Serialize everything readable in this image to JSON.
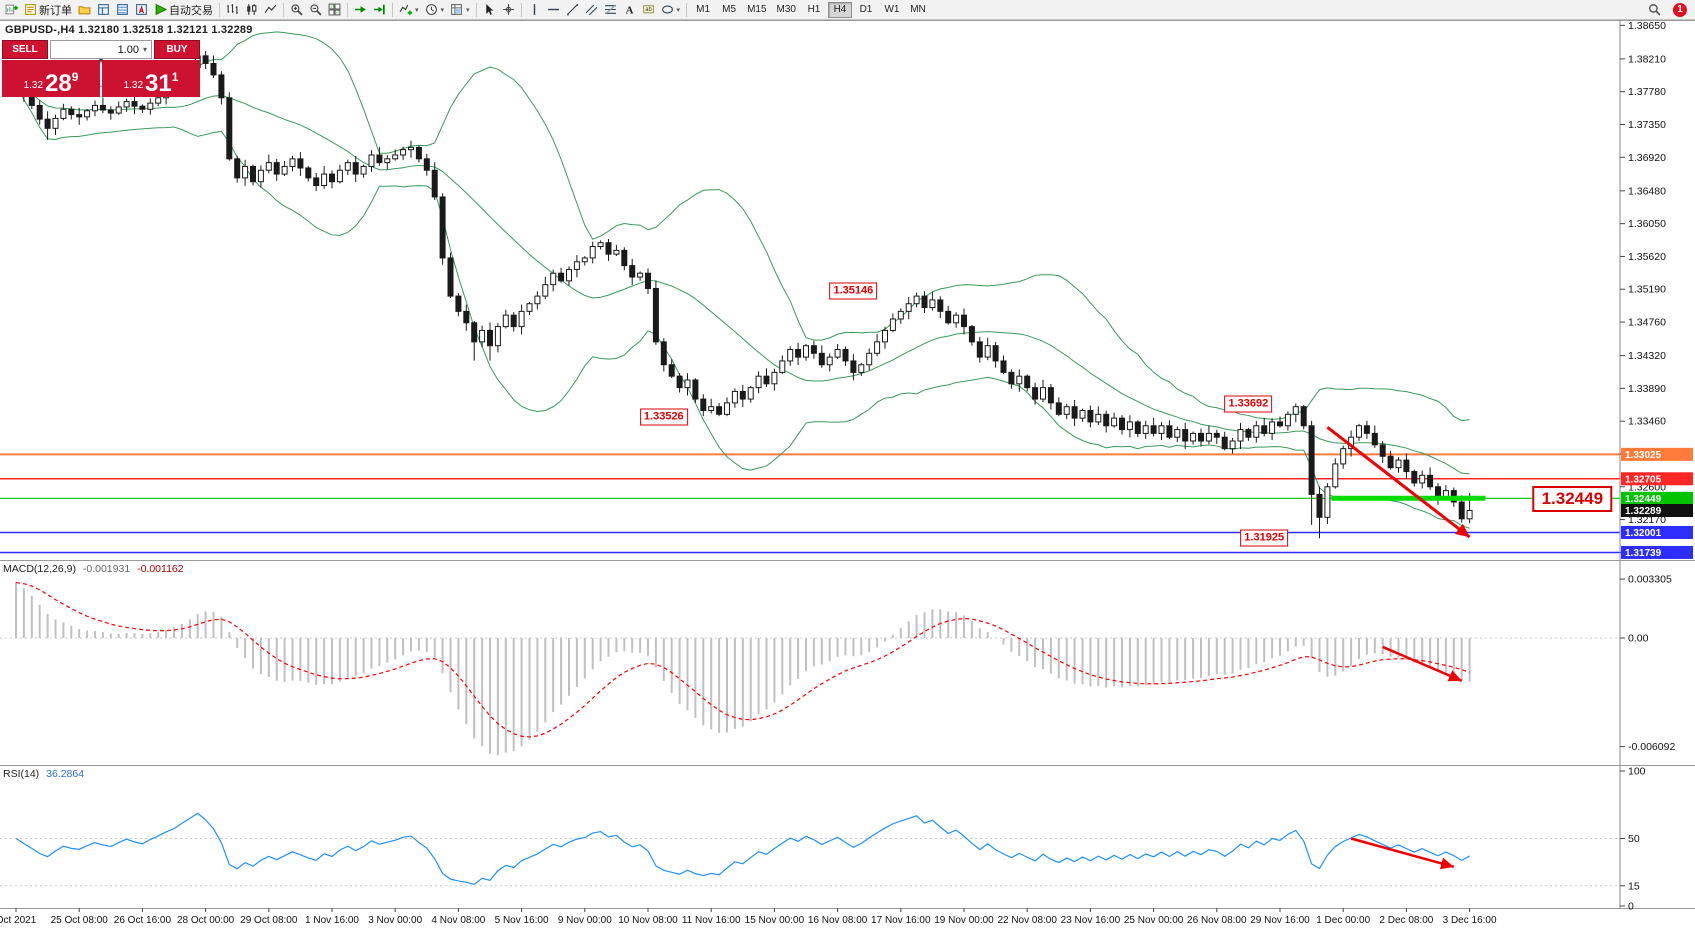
{
  "toolbar": {
    "new_order_label": "新订单",
    "autotrade_label": "自动交易",
    "timeframes": [
      "M1",
      "M5",
      "M15",
      "M30",
      "H1",
      "H4",
      "D1",
      "W1",
      "MN"
    ],
    "active_timeframe": "H4",
    "notification_badge": "1",
    "items": [
      {
        "name": "new-chart",
        "kind": "chartplus"
      },
      {
        "name": "new-order",
        "kind": "neworder",
        "label": "新订单"
      },
      {
        "name": "charts-folder",
        "kind": "folder"
      },
      {
        "name": "market-watch",
        "kind": "watch"
      },
      {
        "name": "data-window",
        "kind": "datawin"
      },
      {
        "name": "navigator",
        "kind": "navigator"
      },
      {
        "name": "auto-trading",
        "kind": "play",
        "label": "自动交易"
      },
      {
        "sep": true
      },
      {
        "name": "bar-chart-mode",
        "kind": "bars"
      },
      {
        "name": "candle-chart-mode",
        "kind": "candles"
      },
      {
        "name": "line-chart-mode",
        "kind": "linechart"
      },
      {
        "sep": true
      },
      {
        "name": "zoom-in",
        "kind": "zoomin"
      },
      {
        "name": "zoom-out",
        "kind": "zoomout"
      },
      {
        "name": "tile-windows",
        "kind": "tile"
      },
      {
        "sep": true
      },
      {
        "name": "auto-scroll",
        "kind": "autoscroll"
      },
      {
        "name": "chart-shift",
        "kind": "shift"
      },
      {
        "sep": true
      },
      {
        "name": "indicators",
        "kind": "indplus",
        "dropdown": true
      },
      {
        "name": "periods",
        "kind": "clock",
        "dropdown": true
      },
      {
        "name": "templates",
        "kind": "template",
        "dropdown": true
      },
      {
        "sep": true
      },
      {
        "name": "cursor",
        "kind": "cursor"
      },
      {
        "name": "crosshair",
        "kind": "crosshair"
      },
      {
        "sep": true
      },
      {
        "name": "vertical-line",
        "kind": "vline"
      },
      {
        "name": "horizontal-line",
        "kind": "hline"
      },
      {
        "name": "trend-line",
        "kind": "tline"
      },
      {
        "name": "equidistant-channel",
        "kind": "channel"
      },
      {
        "name": "fibonacci",
        "kind": "fibo"
      },
      {
        "name": "text",
        "kind": "textA"
      },
      {
        "name": "text-label",
        "kind": "labelT"
      },
      {
        "name": "shapes",
        "kind": "ellipse",
        "dropdown": true
      },
      {
        "sep": true
      }
    ]
  },
  "chart_header": {
    "title": "GBPUSD-,H4 1.32180 1.32518 1.32121 1.32289"
  },
  "trade_panel": {
    "sell_label": "SELL",
    "buy_label": "BUY",
    "volume": "1.00",
    "sell_price_prefix": "1.32",
    "sell_price_big": "28",
    "sell_price_sup": "9",
    "buy_price_prefix": "1.32",
    "buy_price_big": "31",
    "buy_price_sup": "1"
  },
  "indicators": {
    "macd_label": "MACD(12,26,9)",
    "macd_value": "-0.001931",
    "macd_signal_value": "-0.001162",
    "rsi_label": "RSI(14)",
    "rsi_value": "36.2864"
  },
  "chart_data": {
    "type": "candlestick",
    "symbol": "GBPUSD-",
    "period": "H4",
    "ohlc_display": {
      "open": "1.32180",
      "high": "1.32518",
      "low": "1.32121",
      "close": "1.32289"
    },
    "price_range": [
      1.3164,
      1.3872
    ],
    "price_axis_ticks": [
      "1.38650",
      "1.38210",
      "1.37780",
      "1.37350",
      "1.36920",
      "1.36480",
      "1.36050",
      "1.35620",
      "1.35190",
      "1.34760",
      "1.34320",
      "1.33890",
      "1.33460",
      "1.33030",
      "1.32600",
      "1.32170",
      "1.31740"
    ],
    "time_labels": [
      "Oct 2021",
      "25 Oct 08:00",
      "26 Oct 16:00",
      "28 Oct 00:00",
      "29 Oct 08:00",
      "1 Nov 16:00",
      "3 Nov 00:00",
      "4 Nov 08:00",
      "5 Nov 16:00",
      "9 Nov 00:00",
      "10 Nov 08:00",
      "11 Nov 16:00",
      "15 Nov 00:00",
      "16 Nov 08:00",
      "17 Nov 16:00",
      "19 Nov 00:00",
      "22 Nov 08:00",
      "23 Nov 16:00",
      "25 Nov 00:00",
      "26 Nov 08:00",
      "29 Nov 16:00",
      "1 Dec 00:00",
      "2 Dec 08:00",
      "3 Dec 16:00"
    ],
    "bars_per_label": 8,
    "first_open": 1.3778,
    "closes": [
      1.379,
      1.3775,
      1.376,
      1.3742,
      1.373,
      1.3743,
      1.3755,
      1.3748,
      1.3745,
      1.3753,
      1.376,
      1.3754,
      1.375,
      1.3758,
      1.3765,
      1.3759,
      1.3755,
      1.3763,
      1.377,
      1.3778,
      1.3785,
      1.3797,
      1.381,
      1.3825,
      1.3815,
      1.38,
      1.377,
      1.369,
      1.3665,
      1.368,
      1.366,
      1.3675,
      1.3685,
      1.367,
      1.368,
      1.369,
      1.3678,
      1.3665,
      1.3655,
      1.367,
      1.366,
      1.3675,
      1.3685,
      1.367,
      1.368,
      1.3695,
      1.3685,
      1.369,
      1.3695,
      1.3702,
      1.3705,
      1.369,
      1.3675,
      1.364,
      1.356,
      1.351,
      1.349,
      1.3475,
      1.345,
      1.3465,
      1.3445,
      1.347,
      1.3485,
      1.347,
      1.349,
      1.35,
      1.351,
      1.3525,
      1.354,
      1.353,
      1.3545,
      1.3555,
      1.356,
      1.3575,
      1.358,
      1.3565,
      1.357,
      1.355,
      1.3535,
      1.354,
      1.352,
      1.345,
      1.342,
      1.3405,
      1.339,
      1.34,
      1.3375,
      1.336,
      1.3365,
      1.3355,
      1.337,
      1.3385,
      1.3375,
      1.339,
      1.3405,
      1.3395,
      1.341,
      1.3425,
      1.344,
      1.343,
      1.3445,
      1.3435,
      1.342,
      1.343,
      1.344,
      1.3425,
      1.341,
      1.342,
      1.3435,
      1.345,
      1.3465,
      1.348,
      1.349,
      1.35,
      1.351,
      1.3495,
      1.3505,
      1.349,
      1.3475,
      1.3485,
      1.347,
      1.345,
      1.343,
      1.3445,
      1.3425,
      1.341,
      1.3395,
      1.3405,
      1.339,
      1.3375,
      1.339,
      1.337,
      1.3355,
      1.3365,
      1.335,
      1.336,
      1.3345,
      1.3355,
      1.334,
      1.335,
      1.3335,
      1.3345,
      1.333,
      1.334,
      1.333,
      1.334,
      1.3325,
      1.3335,
      1.332,
      1.333,
      1.332,
      1.333,
      1.3325,
      1.331,
      1.332,
      1.3335,
      1.3325,
      1.334,
      1.333,
      1.3345,
      1.334,
      1.3355,
      1.3365,
      1.334,
      1.325,
      1.322,
      1.326,
      1.329,
      1.331,
      1.3325,
      1.334,
      1.333,
      1.3315,
      1.33,
      1.3285,
      1.3295,
      1.328,
      1.3265,
      1.3275,
      1.326,
      1.3245,
      1.3255,
      1.324,
      1.3218,
      1.32289
    ],
    "wick_pattern": [
      0.0005,
      0.0011,
      0.0003,
      0.0008,
      0.0013,
      0.0006,
      0.0009
    ],
    "wick_overrides": {
      "4": {
        "low": 1.3715
      },
      "23": {
        "high": 1.383
      },
      "58": {
        "low": 1.34254
      },
      "60": {
        "low": 1.34254
      },
      "74": {
        "high": 1.3583
      },
      "89": {
        "low": 1.33526
      },
      "114": {
        "high": 1.35146
      },
      "162": {
        "high": 1.33692
      },
      "164": {
        "low": 1.321
      },
      "165": {
        "low": 1.31925
      },
      "183": {
        "low": 1.3213
      },
      "184": {
        "open": 1.3218,
        "high": 1.32518,
        "low": 1.32121,
        "close": 1.32289
      }
    },
    "bollinger": {
      "period": 20,
      "deviation": 2,
      "color": "#3a9a5c"
    },
    "horizontal_lines": [
      {
        "price": 1.33025,
        "label": "1.33025",
        "color": "#ff7b3a",
        "width": 2
      },
      {
        "price": 1.32705,
        "label": "1.32705",
        "color": "#ff2626",
        "width": 1.5
      },
      {
        "price": 1.32449,
        "label": "1.32449",
        "color": "#00c400",
        "width": 1.2
      },
      {
        "price": 1.32001,
        "label": "1.32001",
        "color": "#2d2dff",
        "width": 1.5
      },
      {
        "price": 1.31739,
        "label": "1.31739",
        "color": "#2d2dff",
        "width": 1.5
      }
    ],
    "current_price_tag": {
      "price": 1.32289,
      "label": "1.32289",
      "color": "#111111"
    },
    "support_segment": {
      "price": 1.32449,
      "from_bar": 166.5,
      "to_bar": 186,
      "color": "#00dd00",
      "width": 5
    },
    "annotations": [
      {
        "text": "1.35146",
        "bar": 106,
        "price": 1.3517
      },
      {
        "text": "1.33526",
        "bar": 82,
        "price": 1.3352
      },
      {
        "text": "1.33692",
        "bar": 156,
        "price": 1.3369
      },
      {
        "text": "1.31925",
        "bar": 158,
        "price": 1.3193
      },
      {
        "text": "1.32449",
        "bar": 197,
        "price": 1.3244,
        "large": true
      }
    ],
    "trend_arrows": {
      "main": {
        "from": {
          "bar": 166,
          "price": 1.3338
        },
        "to": {
          "bar": 184,
          "price": 1.3194
        }
      },
      "macd": {
        "from": {
          "bar": 173,
          "value": -0.0005
        },
        "to": {
          "bar": 183,
          "value": -0.0024
        }
      },
      "rsi": {
        "from": {
          "bar": 169,
          "value": 50
        },
        "to": {
          "bar": 182,
          "value": 29
        }
      }
    },
    "macd": {
      "params": [
        12,
        26,
        9
      ],
      "axis_labels": [
        "0.003305",
        "0.00",
        "-0.006092"
      ],
      "axis_values": [
        0.003305,
        0,
        -0.006092
      ],
      "histogram_color": "#c0c0c0",
      "signal_color": "#ff0000",
      "display_main": -0.001931,
      "display_signal": -0.001162
    },
    "rsi": {
      "period": 14,
      "axis_labels": [
        "100",
        "50",
        "15",
        "0"
      ],
      "axis_values": [
        100,
        50,
        15,
        0
      ],
      "levels": [
        50,
        15
      ],
      "color": "#1e90ff",
      "display_value": 36.2864
    }
  }
}
